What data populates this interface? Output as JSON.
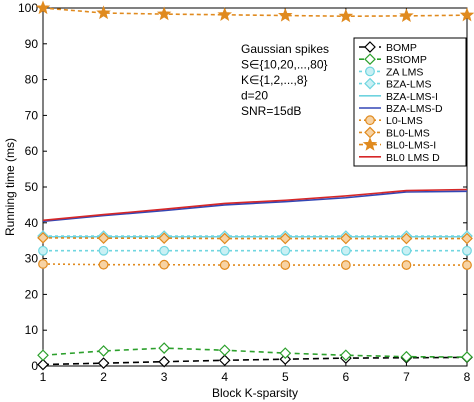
{
  "chart_data": {
    "type": "line",
    "title": "",
    "xlabel": "Block K-sparsity",
    "ylabel": "Running time (ms)",
    "xlim": [
      1,
      8
    ],
    "ylim": [
      0,
      100
    ],
    "xticks": [
      1,
      2,
      3,
      4,
      5,
      6,
      7,
      8
    ],
    "yticks": [
      0,
      10,
      20,
      30,
      40,
      50,
      60,
      70,
      80,
      90,
      100
    ],
    "grid": false,
    "legend_position": "right, middle-upper",
    "annotation_lines": [
      "Gaussian spikes",
      "S∈{10,20,...,80}",
      "K∈{1,2,...,8}",
      "d=20",
      "SNR=15dB"
    ],
    "x": [
      1,
      2,
      3,
      4,
      5,
      6,
      7,
      8
    ],
    "series": [
      {
        "name": "BOMP",
        "color": "#000000",
        "dash": "6,4",
        "marker": "diamond",
        "marker_fill": "#ffffff",
        "values": [
          0.4,
          0.8,
          1.2,
          1.6,
          1.9,
          2.2,
          2.3,
          2.4
        ]
      },
      {
        "name": "BStOMP",
        "color": "#2ca02c",
        "dash": "5,4",
        "marker": "diamond",
        "marker_fill": "#ffffff",
        "values": [
          3.0,
          4.2,
          5.0,
          4.4,
          3.6,
          3.0,
          2.6,
          2.5
        ]
      },
      {
        "name": "ZA LMS",
        "color": "#70d6e0",
        "dash": "3,3",
        "marker": "circle",
        "marker_fill": "#c9f0f4",
        "values": [
          32.2,
          32.2,
          32.2,
          32.2,
          32.2,
          32.2,
          32.2,
          32.2
        ]
      },
      {
        "name": "BZA-LMS",
        "color": "#70d6e0",
        "dash": "3,3",
        "marker": "diamond",
        "marker_fill": "#c9f0f4",
        "values": [
          36.3,
          36.3,
          36.3,
          36.3,
          36.3,
          36.3,
          36.3,
          36.3
        ]
      },
      {
        "name": "BZA-LMS-I",
        "color": "#6fd3df",
        "dash": "",
        "marker": "none",
        "marker_fill": "none",
        "values": [
          36.1,
          36.1,
          36.1,
          36.1,
          36.1,
          36.1,
          36.1,
          36.1
        ]
      },
      {
        "name": "BZA-LMS-D",
        "color": "#3346b5",
        "dash": "",
        "marker": "none",
        "marker_fill": "none",
        "values": [
          40.4,
          42.0,
          43.4,
          45.0,
          45.9,
          47.0,
          48.6,
          48.8
        ]
      },
      {
        "name": "L0-LMS",
        "color": "#e08a1e",
        "dash": "2,3",
        "marker": "circle",
        "marker_fill": "#f7d3a4",
        "values": [
          28.5,
          28.3,
          28.3,
          28.2,
          28.2,
          28.2,
          28.2,
          28.2
        ]
      },
      {
        "name": "BL0-LMS",
        "color": "#e08a1e",
        "dash": "3,3",
        "marker": "diamond",
        "marker_fill": "#f7d3a4",
        "values": [
          35.8,
          35.7,
          35.7,
          35.6,
          35.6,
          35.6,
          35.6,
          35.6
        ]
      },
      {
        "name": "BL0-LMS-I",
        "color": "#e08a1e",
        "dash": "4,3",
        "marker": "star",
        "marker_fill": "#e08a1e",
        "values": [
          100.0,
          98.6,
          98.3,
          98.1,
          97.9,
          97.7,
          97.8,
          98.0
        ]
      },
      {
        "name": "BL0 LMS D",
        "color": "#d62728",
        "dash": "",
        "marker": "none",
        "marker_fill": "none",
        "values": [
          40.7,
          42.3,
          43.8,
          45.4,
          46.3,
          47.5,
          49.0,
          49.3
        ]
      }
    ]
  }
}
